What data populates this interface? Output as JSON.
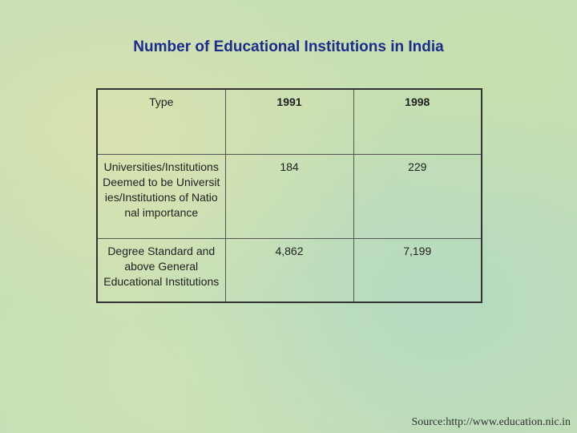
{
  "header": {
    "title": "Number of Educational Institutions in India"
  },
  "table": {
    "columns": [
      "Type",
      "1991",
      "1998"
    ],
    "rows": [
      [
        "Universities/Institutions Deemed to be Universities/Institutions of National importance",
        "184",
        "229"
      ],
      [
        "Degree Standard and above General Educational Institutions",
        "4,862",
        "7,199"
      ]
    ]
  },
  "footer": {
    "source": "Source:http://www.education.nic.in"
  }
}
